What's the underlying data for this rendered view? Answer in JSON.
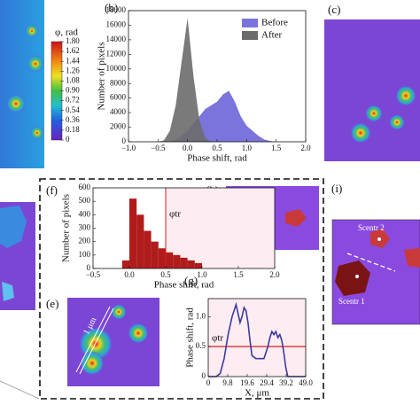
{
  "panels": [
    "(c)",
    "(h)",
    "(i)",
    "(e)"
  ],
  "annotations": {
    "scentr_2": "Scentr 2",
    "scentr_1": "Scentr 1",
    "scale": "1 μm"
  },
  "colorbar": {
    "title": "φ, rad",
    "lim": [
      0,
      1.8
    ],
    "ticks": [
      {
        "value": 1.8,
        "label": "1.80"
      },
      1.62,
      1.44,
      1.26,
      1.08,
      {
        "value": 0.9,
        "label": "0.90"
      },
      0.72,
      0.54,
      0.36,
      0.18,
      0
    ]
  },
  "chart_data": [
    {
      "type": "area",
      "label": "(b)",
      "xlabel": "Phase shift, rad",
      "ylabel": "Number of pixels",
      "x": [
        -0.5,
        -0.4,
        -0.3,
        -0.2,
        -0.1,
        0,
        0.1,
        0.2,
        0.3,
        0.4,
        0.5,
        0.6,
        0.7,
        0.8,
        0.9,
        1.0,
        1.1,
        1.2,
        1.3,
        1.4,
        1.5
      ],
      "series": [
        {
          "name": "Before",
          "color": "#7b74dc",
          "values": [
            0,
            0,
            0,
            300,
            800,
            1500,
            2500,
            3500,
            4500,
            5000,
            5500,
            6500,
            7000,
            5500,
            3500,
            2200,
            1500,
            800,
            300,
            100,
            0
          ]
        },
        {
          "name": "After",
          "color": "#6b6b6b",
          "values": [
            0,
            200,
            1500,
            5000,
            11000,
            17000,
            9000,
            3000,
            500,
            0,
            0,
            0,
            0,
            0,
            0,
            0,
            0,
            0,
            0,
            0,
            0
          ]
        }
      ],
      "legend": "upper right",
      "xlim": [
        -1.0,
        2.0
      ],
      "xticks": [
        {
          "value": -1.0,
          "label": "−1.0"
        },
        {
          "value": -0.5,
          "label": "−0.5"
        },
        {
          "value": 0,
          "label": "0.0"
        },
        0.5,
        {
          "value": 1.0,
          "label": "1.0"
        },
        1.5,
        {
          "value": 2.0,
          "label": "2.0"
        }
      ],
      "ylim": [
        0,
        18000
      ],
      "yticks": [
        0,
        2000,
        4000,
        6000,
        8000,
        10000,
        12000,
        14000,
        16000,
        18000
      ]
    },
    {
      "type": "histogram",
      "label": "(f)",
      "xlabel": "Phase shift, rad",
      "ylabel": "Number of pixels",
      "bins": [
        -0.1,
        0,
        0.1,
        0.2,
        0.3,
        0.4,
        0.5,
        0.6,
        0.7,
        0.8,
        0.9,
        1.0
      ],
      "values": [
        60,
        520,
        400,
        280,
        200,
        150,
        120,
        100,
        80,
        60,
        40
      ],
      "color": "#b01c1c",
      "threshold": 0.5,
      "threshold_color": "#d42020",
      "annotation": "φtr",
      "xlim": [
        -0.5,
        2.0
      ],
      "xticks": [
        {
          "value": -0.5,
          "label": "−0.5"
        },
        {
          "value": 0,
          "label": "0.0"
        },
        0.5,
        {
          "value": 1.0,
          "label": "1.0"
        },
        1.5,
        {
          "value": 2.0,
          "label": "2.0"
        }
      ],
      "ylim": [
        0,
        600
      ],
      "yticks": [
        0,
        100,
        200,
        300,
        400,
        500,
        600
      ]
    },
    {
      "type": "line",
      "label": "(g)",
      "xlabel": "X, μm",
      "ylabel": "Phase shift, rad",
      "x": [
        0,
        2,
        4,
        6,
        8,
        10,
        12,
        13,
        14,
        15,
        16,
        17,
        18,
        19,
        20,
        21,
        22,
        24,
        26,
        28,
        30,
        31,
        32,
        33,
        34,
        35,
        36,
        37,
        38,
        39,
        40,
        42,
        44,
        46,
        48,
        49
      ],
      "values": [
        0,
        0,
        0,
        0.05,
        0.3,
        0.7,
        1.0,
        1.1,
        1.2,
        1.05,
        0.9,
        1.0,
        1.15,
        1.1,
        0.9,
        0.6,
        0.35,
        0.3,
        0.3,
        0.3,
        0.5,
        0.65,
        0.75,
        0.7,
        0.75,
        0.65,
        0.7,
        0.6,
        0.4,
        0.15,
        0,
        0,
        0,
        0,
        0,
        0
      ],
      "color": "#3a3aa0",
      "threshold": 0.5,
      "threshold_color": "#d42020",
      "annotation": "φtr",
      "xlim": [
        0,
        49
      ],
      "xticks": [
        0,
        9.8,
        19.6,
        29.4,
        39.2,
        {
          "value": 49.0,
          "label": "49.0"
        }
      ],
      "ylim": [
        0,
        1.3
      ],
      "yticks": [
        0,
        0.5,
        {
          "value": 1.0,
          "label": "1.0"
        }
      ]
    }
  ]
}
